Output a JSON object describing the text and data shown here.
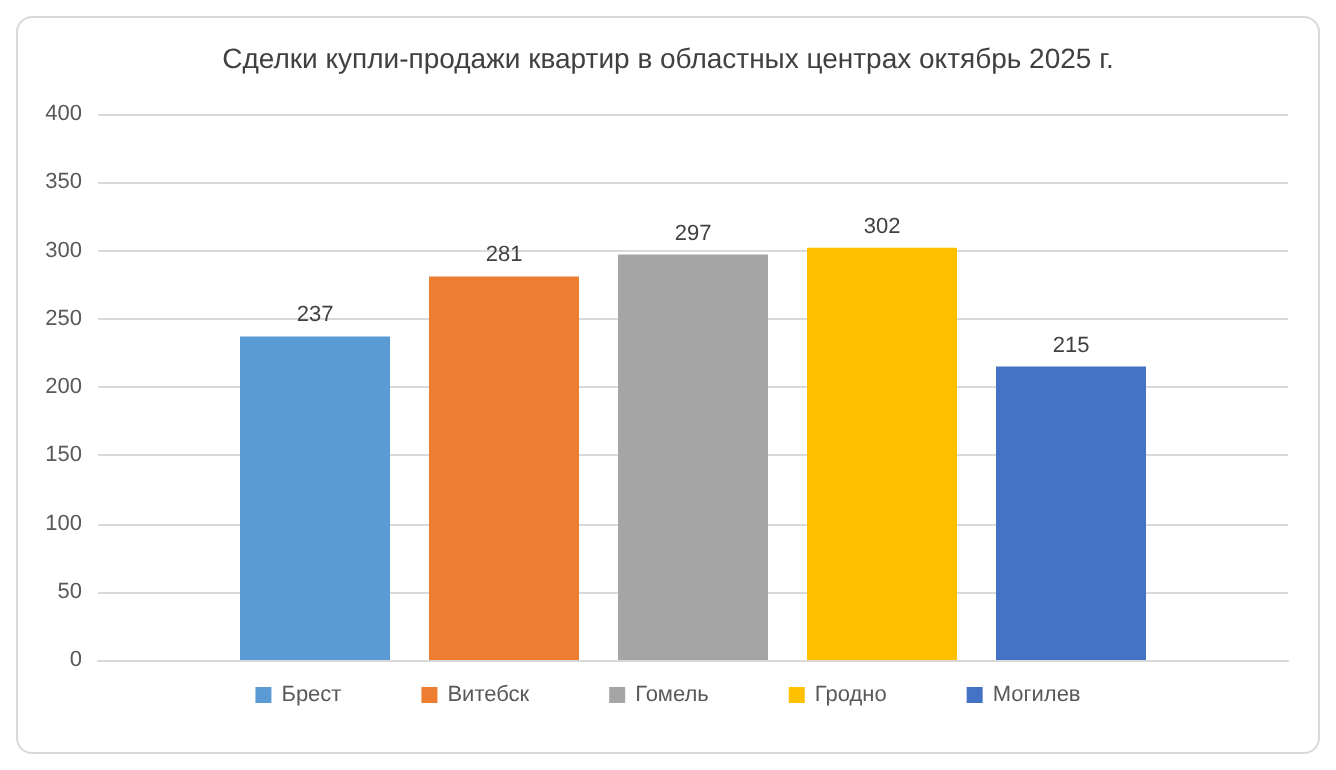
{
  "chart_data": {
    "type": "bar",
    "title": "Сделки купли-продажи квартир в областных центрах октябрь 2025 г.",
    "categories": [
      null
    ],
    "series": [
      {
        "name": "Брест",
        "color": "#5b9bd5",
        "values": [
          237
        ]
      },
      {
        "name": "Витебск",
        "color": "#ed7d31",
        "values": [
          281
        ]
      },
      {
        "name": "Гомель",
        "color": "#a5a5a5",
        "values": [
          297
        ]
      },
      {
        "name": "Гродно",
        "color": "#ffc000",
        "values": [
          302
        ]
      },
      {
        "name": "Могилев",
        "color": "#4472c4",
        "values": [
          215
        ]
      }
    ],
    "ylim": [
      0,
      400
    ],
    "yticks": [
      0,
      50,
      100,
      150,
      200,
      250,
      300,
      350,
      400
    ],
    "grid": "y",
    "legend": "bottom",
    "data_labels": true
  }
}
